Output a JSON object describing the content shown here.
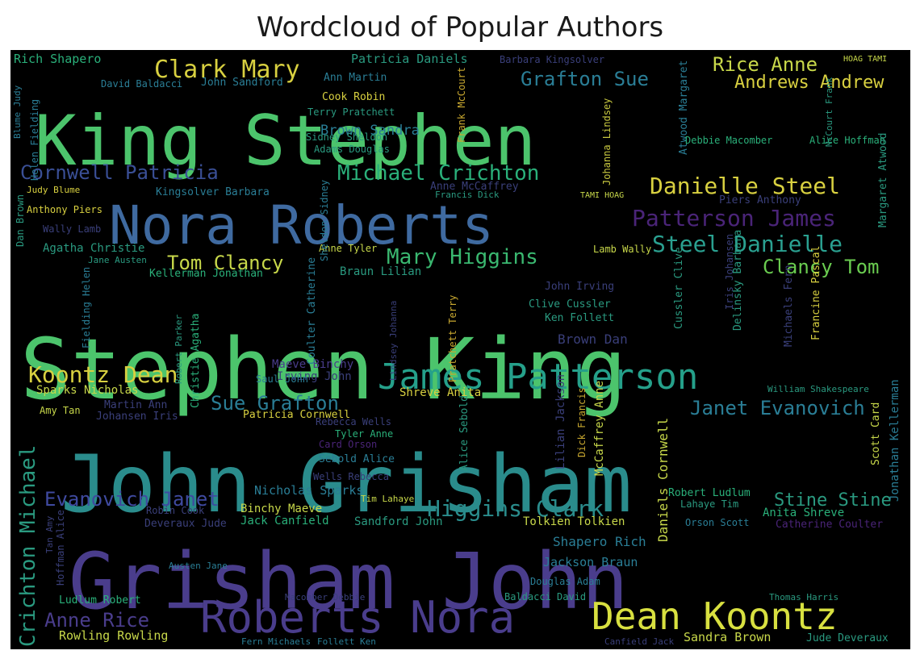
{
  "chart_data": {
    "type": "wordcloud",
    "title": "Wordcloud of Popular Authors",
    "background": "#000000",
    "words": [
      {
        "text": "King Stephen",
        "color": "#4cc46c"
      },
      {
        "text": "Stephen King",
        "color": "#4cc46c"
      },
      {
        "text": "John Grisham",
        "color": "#2a8c8c"
      },
      {
        "text": "Grisham John",
        "color": "#4a3d8c"
      },
      {
        "text": "Nora Roberts",
        "color": "#3f6aa0"
      },
      {
        "text": "James Patterson",
        "color": "#25a08a"
      },
      {
        "text": "Roberts Nora",
        "color": "#4a3d8c"
      },
      {
        "text": "Dean Koontz",
        "color": "#d8e040"
      },
      {
        "text": "Clark Mary",
        "color": "#d8d040"
      },
      {
        "text": "Michael Crichton",
        "color": "#2ab07a"
      },
      {
        "text": "Cornwell Patricia",
        "color": "#3a4f96"
      },
      {
        "text": "Danielle Steel",
        "color": "#d8d040"
      },
      {
        "text": "Patterson James",
        "color": "#4a2478"
      },
      {
        "text": "Steel Danielle",
        "color": "#2aa090"
      },
      {
        "text": "Grafton Sue",
        "color": "#2a7e96"
      },
      {
        "text": "Rice Anne",
        "color": "#c8d84a"
      },
      {
        "text": "Andrews Andrew",
        "color": "#d8d040"
      },
      {
        "text": "Tom Clancy",
        "color": "#c8d84a"
      },
      {
        "text": "Mary Higgins",
        "color": "#3ab870"
      },
      {
        "text": "Clancy Tom",
        "color": "#6acc50"
      },
      {
        "text": "Koontz Dean",
        "color": "#d8d040"
      },
      {
        "text": "Sue Grafton",
        "color": "#2a7e96"
      },
      {
        "text": "Janet Evanovich",
        "color": "#2a7e96"
      },
      {
        "text": "Higgins Clark",
        "color": "#2a8c8c"
      },
      {
        "text": "Evanovich Janet",
        "color": "#3f4aa0"
      },
      {
        "text": "Crichton Michael",
        "color": "#2a9a80"
      },
      {
        "text": "Stine Stine",
        "color": "#2a9a80"
      },
      {
        "text": "Anne Rice",
        "color": "#4a3d8c"
      },
      {
        "text": "Rich Shapero",
        "color": "#2ab07a"
      },
      {
        "text": "Patricia Daniels",
        "color": "#2a9a80"
      },
      {
        "text": "Barbara Kingsolver",
        "color": "#3a3f7a"
      },
      {
        "text": "Ann Martin",
        "color": "#2a7e96"
      },
      {
        "text": "John Sandford",
        "color": "#2a7e96"
      },
      {
        "text": "David Baldacci",
        "color": "#2a7e96"
      },
      {
        "text": "Cook Robin",
        "color": "#d8d040"
      },
      {
        "text": "Terry Pratchett",
        "color": "#2a9a80"
      },
      {
        "text": "Brown Sandra",
        "color": "#2a7e96"
      },
      {
        "text": "Sidney Sheldon",
        "color": "#2a9a80"
      },
      {
        "text": "Adams Douglas",
        "color": "#2a9a80"
      },
      {
        "text": "Frank McCourt",
        "color": "#c8a830"
      },
      {
        "text": "Johanna Lindsey",
        "color": "#c8c840"
      },
      {
        "text": "Atwood Margaret",
        "color": "#2a7e96"
      },
      {
        "text": "Debbie Macomber",
        "color": "#2ab07a"
      },
      {
        "text": "Alice Hoffman",
        "color": "#2ab07a"
      },
      {
        "text": "Margaret Atwood",
        "color": "#2a9a80"
      },
      {
        "text": "Judy Blume",
        "color": "#d8d040"
      },
      {
        "text": "Kingsolver Barbara",
        "color": "#2a7e96"
      },
      {
        "text": "Anne McCaffrey",
        "color": "#3a3f7a"
      },
      {
        "text": "Francis Dick",
        "color": "#2a9a80"
      },
      {
        "text": "Piers Anthony",
        "color": "#3a3f7a"
      },
      {
        "text": "Anthony Piers",
        "color": "#d8d040"
      },
      {
        "text": "Wally Lamb",
        "color": "#3a3f7a"
      },
      {
        "text": "Agatha Christie",
        "color": "#2a9a80"
      },
      {
        "text": "Jane Austen",
        "color": "#2a9a80"
      },
      {
        "text": "Kellerman Jonathan",
        "color": "#2ab07a"
      },
      {
        "text": "Anne Tyler",
        "color": "#c8d84a"
      },
      {
        "text": "Braun Lilian",
        "color": "#2a9a80"
      },
      {
        "text": "Lamb Wally",
        "color": "#c8d84a"
      },
      {
        "text": "John Irving",
        "color": "#3a3f7a"
      },
      {
        "text": "Clive Cussler",
        "color": "#2a9a80"
      },
      {
        "text": "Ken Follett",
        "color": "#2a9a80"
      },
      {
        "text": "Brown Dan",
        "color": "#3a3f7a"
      },
      {
        "text": "Maeve Binchy",
        "color": "#4a3d8c"
      },
      {
        "text": "Irving John",
        "color": "#3a3f7a"
      },
      {
        "text": "Saul John",
        "color": "#2a7e96"
      },
      {
        "text": "Shreve Anita",
        "color": "#d8d040"
      },
      {
        "text": "Sparks Nicholas",
        "color": "#c8d84a"
      },
      {
        "text": "Martin Ann",
        "color": "#3a3f7a"
      },
      {
        "text": "Amy Tan",
        "color": "#c8d84a"
      },
      {
        "text": "Johansen Iris",
        "color": "#3a3f7a"
      },
      {
        "text": "Patricia Cornwell",
        "color": "#d8d040"
      },
      {
        "text": "Rebecca Wells",
        "color": "#3a3f7a"
      },
      {
        "text": "Tyler Anne",
        "color": "#2ab07a"
      },
      {
        "text": "Card Orson",
        "color": "#4a2478"
      },
      {
        "text": "Sebold Alice",
        "color": "#2a7e96"
      },
      {
        "text": "Wells Rebecca",
        "color": "#3a3f7a"
      },
      {
        "text": "Nicholas Sparks",
        "color": "#2a7e96"
      },
      {
        "text": "Robin Cook",
        "color": "#3a3f7a"
      },
      {
        "text": "Binchy Maeve",
        "color": "#c8d84a"
      },
      {
        "text": "Deveraux Jude",
        "color": "#3a3f7a"
      },
      {
        "text": "Jack Canfield",
        "color": "#2ab07a"
      },
      {
        "text": "Sandford John",
        "color": "#2a9a80"
      },
      {
        "text": "Tolkien Tolkien",
        "color": "#c8d84a"
      },
      {
        "text": "Shapero Rich",
        "color": "#2a7e96"
      },
      {
        "text": "Jackson Braun",
        "color": "#2a7e96"
      },
      {
        "text": "Douglas Adam",
        "color": "#2a7e96"
      },
      {
        "text": "Robert Ludlum",
        "color": "#2ab07a"
      },
      {
        "text": "Lahaye Tim",
        "color": "#2a9a80"
      },
      {
        "text": "Anita Shreve",
        "color": "#2ab07a"
      },
      {
        "text": "Catherine Coulter",
        "color": "#4a2478"
      },
      {
        "text": "Orson Scott",
        "color": "#2a7e96"
      },
      {
        "text": "Ludlum Robert",
        "color": "#2ab07a"
      },
      {
        "text": "Macomber Debbie",
        "color": "#3a3f7a"
      },
      {
        "text": "Baldacci David",
        "color": "#2a9a80"
      },
      {
        "text": "Thomas Harris",
        "color": "#2a9a80"
      },
      {
        "text": "Rowling Rowling",
        "color": "#c8d84a"
      },
      {
        "text": "Fern Michaels",
        "color": "#2a7e96"
      },
      {
        "text": "Follett Ken",
        "color": "#2a7e96"
      },
      {
        "text": "Canfield Jack",
        "color": "#3a3f7a"
      },
      {
        "text": "Sandra Brown",
        "color": "#c8d84a"
      },
      {
        "text": "Jude Deveraux",
        "color": "#2a9a80"
      },
      {
        "text": "Daniels Cornwell",
        "color": "#c8d84a"
      },
      {
        "text": "Scott Card",
        "color": "#c8d84a"
      },
      {
        "text": "Jonathan Kellerman",
        "color": "#2a7e96"
      },
      {
        "text": "McCaffrey Anne",
        "color": "#c8d84a"
      },
      {
        "text": "Lilian Jackson",
        "color": "#3a3f7a"
      },
      {
        "text": "Alice Sebold",
        "color": "#2a9a80"
      },
      {
        "text": "Dick Francis",
        "color": "#c8a830"
      },
      {
        "text": "William Shakespeare",
        "color": "#2a9a80"
      },
      {
        "text": "Francine Pascal",
        "color": "#d8d040"
      },
      {
        "text": "Michaels Fern",
        "color": "#3a3f7a"
      },
      {
        "text": "Delinsky Barbara",
        "color": "#2a9a80"
      },
      {
        "text": "Cussler Clive",
        "color": "#2a9a80"
      },
      {
        "text": "Christie Agatha",
        "color": "#2ab07a"
      },
      {
        "text": "Coulter Catherine",
        "color": "#2a7e96"
      },
      {
        "text": "Sheldon Sidney",
        "color": "#2a7e96"
      },
      {
        "text": "Dan Brown",
        "color": "#2a9a80"
      },
      {
        "text": "Fielding Helen",
        "color": "#2a7e96"
      },
      {
        "text": "Hoffman Alice",
        "color": "#3a3f7a"
      },
      {
        "text": "Helen Fielding",
        "color": "#2a7e96"
      },
      {
        "text": "Blume Judy",
        "color": "#2a7e96"
      },
      {
        "text": "McCourt Frank",
        "color": "#2a9a80"
      },
      {
        "text": "HOAG TAMI",
        "color": "#c8d84a"
      },
      {
        "text": "TAMI HOAG",
        "color": "#c8d84a"
      },
      {
        "text": "Robert Parker",
        "color": "#2a9a80"
      },
      {
        "text": "Pratchett Terry",
        "color": "#c8a830"
      },
      {
        "text": "Tim Lahaye",
        "color": "#c8d84a"
      },
      {
        "text": "Austen Jane",
        "color": "#2a7e96"
      },
      {
        "text": "Tan Amy",
        "color": "#3a3f7a"
      },
      {
        "text": "Lindsey Johanna",
        "color": "#3a3f7a"
      },
      {
        "text": "Iris Johansen",
        "color": "#3a3f7a"
      }
    ]
  }
}
